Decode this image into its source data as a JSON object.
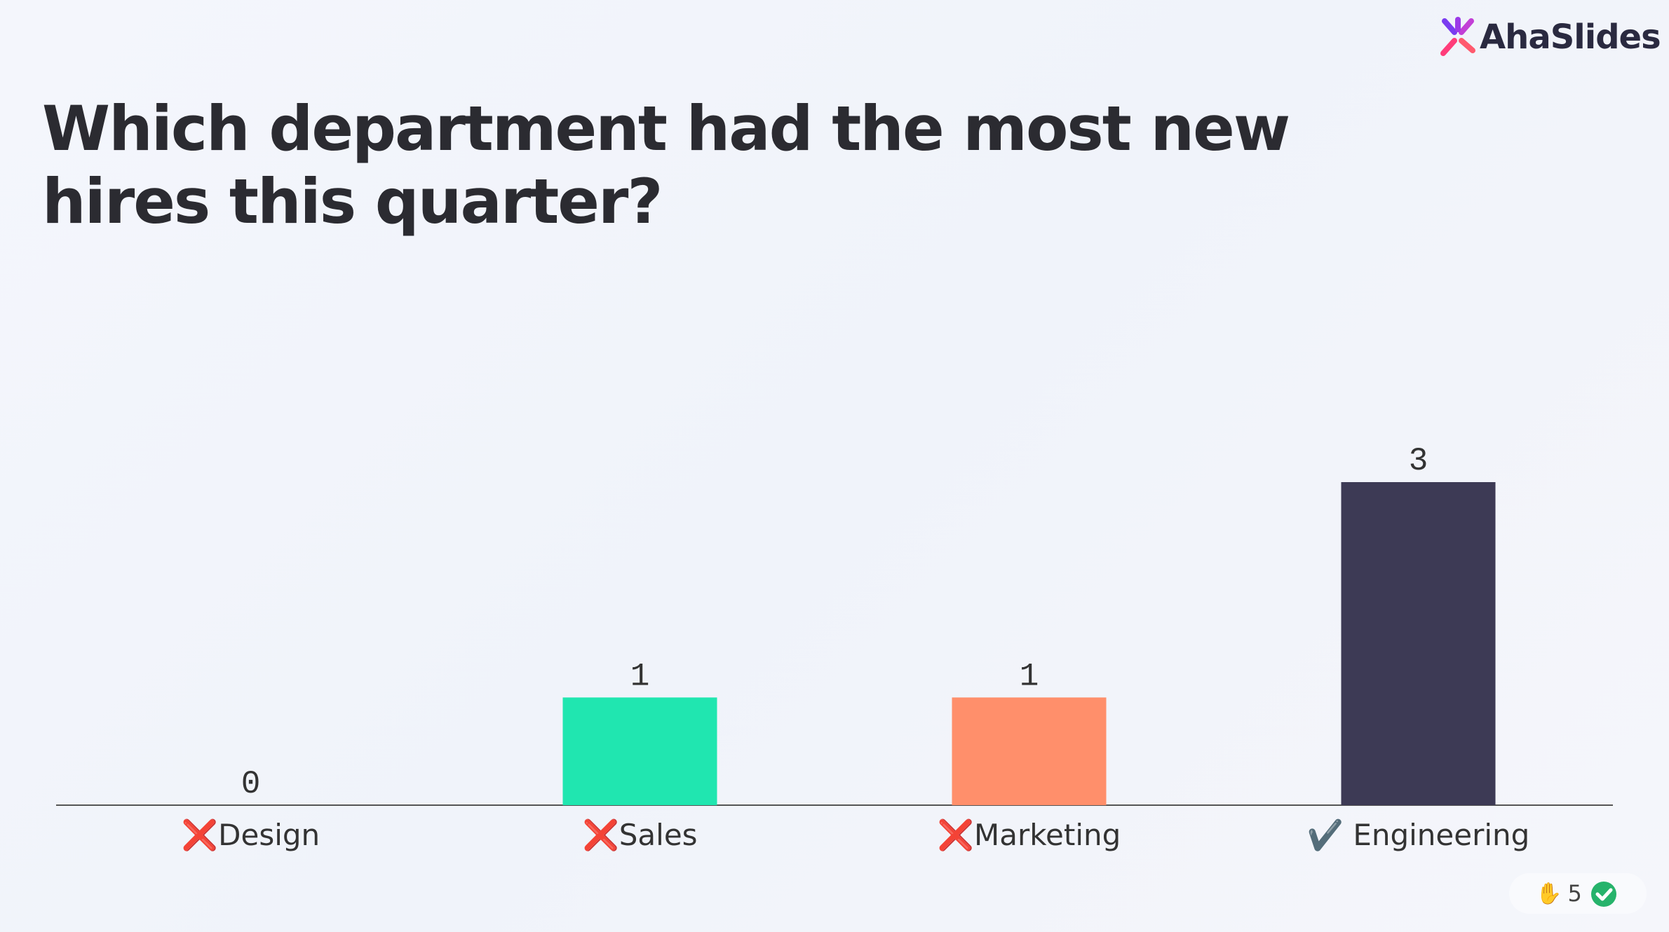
{
  "brand": "AhaSlides",
  "participants": 5,
  "chart_data": {
    "type": "bar",
    "title": "Which department had the most new hires this quarter?",
    "categories": [
      "❌Design",
      "❌Sales",
      "❌Marketing",
      "✔️ Engineering"
    ],
    "values": [
      0,
      1,
      1,
      3
    ],
    "colors": [
      null,
      "#20e6b0",
      "#ff8f6b",
      "#3d3a55"
    ]
  }
}
